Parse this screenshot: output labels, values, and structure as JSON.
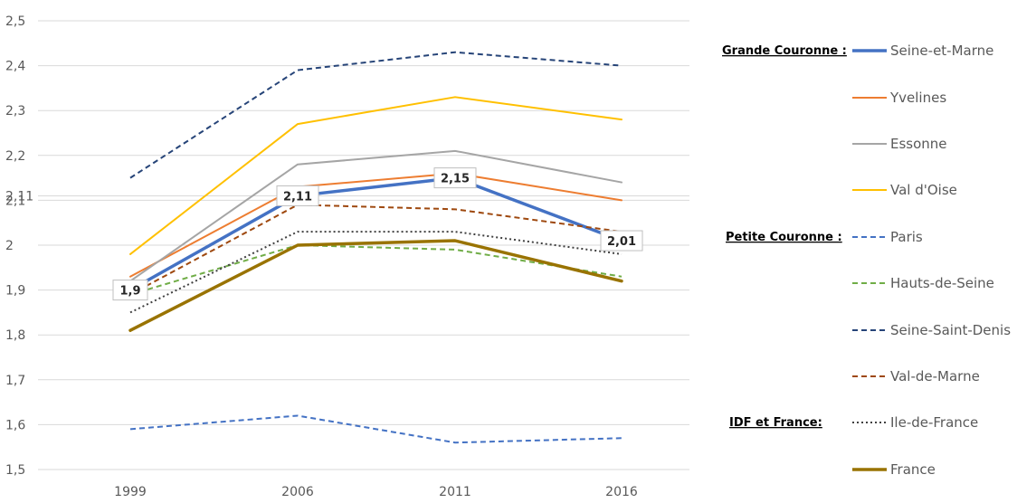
{
  "chart_data": {
    "type": "line",
    "categories": [
      "1999",
      "2006",
      "2011",
      "2016"
    ],
    "ylim": [
      1.5,
      2.5
    ],
    "y_ticks": [
      "1,5",
      "1,6",
      "1,7",
      "1,8",
      "1,9",
      "2",
      "2,1",
      "2,11",
      "2,2",
      "2,3",
      "2,4",
      "2,5"
    ],
    "y_tick_values": [
      1.5,
      1.6,
      1.7,
      1.8,
      1.9,
      2.0,
      2.1,
      2.11,
      2.2,
      2.3,
      2.4,
      2.5
    ],
    "grid": true,
    "legend_position": "right",
    "legend_groups": [
      {
        "label": "Grande Couronne :",
        "series": [
          "Seine-et-Marne",
          "Yvelines",
          "Essonne",
          "Val d'Oise"
        ]
      },
      {
        "label": "Petite Couronne :",
        "series": [
          "Paris",
          "Hauts-de-Seine",
          "Seine-Saint-Denis",
          "Val-de-Marne"
        ]
      },
      {
        "label": "IDF et France:",
        "series": [
          "Ile-de-France",
          "France"
        ]
      }
    ],
    "series": [
      {
        "name": "Seine-et-Marne",
        "values": [
          1.9,
          2.11,
          2.15,
          2.01
        ],
        "color": "#4472C4",
        "style": "solid",
        "width": "thick",
        "data_labels": [
          "1,9",
          "2,11",
          "2,15",
          "2,01"
        ]
      },
      {
        "name": "Yvelines",
        "values": [
          1.93,
          2.13,
          2.16,
          2.1
        ],
        "color": "#ED7D31",
        "style": "solid",
        "width": "normal"
      },
      {
        "name": "Essonne",
        "values": [
          1.92,
          2.18,
          2.21,
          2.14
        ],
        "color": "#A5A5A5",
        "style": "solid",
        "width": "normal"
      },
      {
        "name": "Val d'Oise",
        "values": [
          1.98,
          2.27,
          2.33,
          2.28
        ],
        "color": "#FFC000",
        "style": "solid",
        "width": "normal"
      },
      {
        "name": "Paris",
        "values": [
          1.59,
          1.62,
          1.56,
          1.57
        ],
        "color": "#4472C4",
        "style": "dashed",
        "width": "normal"
      },
      {
        "name": "Hauts-de-Seine",
        "values": [
          1.89,
          2.0,
          1.99,
          1.93
        ],
        "color": "#70AD47",
        "style": "dashed",
        "width": "normal"
      },
      {
        "name": "Seine-Saint-Denis",
        "values": [
          2.15,
          2.39,
          2.43,
          2.4
        ],
        "color": "#264478",
        "style": "dashed",
        "width": "normal"
      },
      {
        "name": "Val-de-Marne",
        "values": [
          1.89,
          2.09,
          2.08,
          2.03
        ],
        "color": "#9E480E",
        "style": "dashed",
        "width": "normal"
      },
      {
        "name": "Ile-de-France",
        "values": [
          1.85,
          2.03,
          2.03,
          1.98
        ],
        "color": "#404040",
        "style": "dotted",
        "width": "normal"
      },
      {
        "name": "France",
        "values": [
          1.81,
          2.0,
          2.01,
          1.92
        ],
        "color": "#997300",
        "style": "solid",
        "width": "thick"
      }
    ]
  }
}
